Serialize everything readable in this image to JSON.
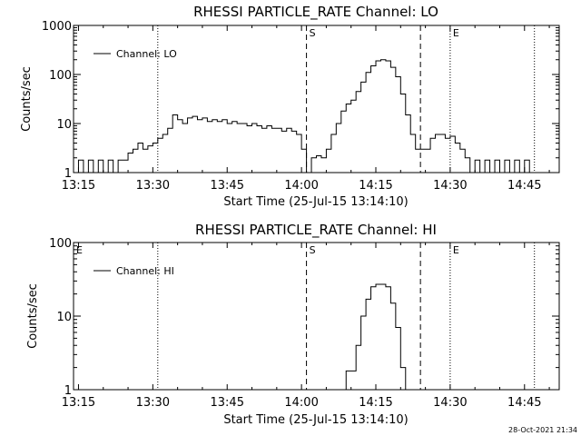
{
  "timestamp": "28-Oct-2021 21:34",
  "chart_data": [
    {
      "type": "line",
      "title": "RHESSI PARTICLE_RATE Channel: LO",
      "xlabel": "Start Time (25-Jul-15 13:14:10)",
      "ylabel": "Counts/sec",
      "yscale": "log",
      "xlim": [
        "13:14",
        "14:52"
      ],
      "ylim": [
        1,
        1000
      ],
      "x_ticks": [
        "13:15",
        "13:30",
        "13:45",
        "14:00",
        "14:15",
        "14:30",
        "14:45"
      ],
      "y_ticks": [
        "1",
        "10",
        "100",
        "1000"
      ],
      "legend": {
        "placement": "top-left",
        "entries": [
          "Channel: LO"
        ]
      },
      "vlines": [
        {
          "x": "13:31",
          "style": "dotted",
          "label": ""
        },
        {
          "x": "14:01",
          "style": "dashed",
          "label": "S"
        },
        {
          "x": "14:24",
          "style": "dashed",
          "label": ""
        },
        {
          "x": "14:30",
          "style": "dotted",
          "label": "E"
        },
        {
          "x": "14:47",
          "style": "dotted",
          "label": ""
        }
      ],
      "series": [
        {
          "name": "Channel: LO",
          "points": [
            [
              "13:14",
              1
            ],
            [
              "13:15",
              1.8
            ],
            [
              "13:16",
              1
            ],
            [
              "13:17",
              1.8
            ],
            [
              "13:18",
              1
            ],
            [
              "13:19",
              1.8
            ],
            [
              "13:20",
              1
            ],
            [
              "13:21",
              1.8
            ],
            [
              "13:22",
              1
            ],
            [
              "13:23",
              1.8
            ],
            [
              "13:24",
              1.8
            ],
            [
              "13:25",
              2.5
            ],
            [
              "13:26",
              3
            ],
            [
              "13:27",
              4
            ],
            [
              "13:28",
              3
            ],
            [
              "13:29",
              3.5
            ],
            [
              "13:30",
              4
            ],
            [
              "13:31",
              5
            ],
            [
              "13:32",
              6
            ],
            [
              "13:33",
              8
            ],
            [
              "13:34",
              15
            ],
            [
              "13:35",
              12
            ],
            [
              "13:36",
              10
            ],
            [
              "13:37",
              13
            ],
            [
              "13:38",
              14
            ],
            [
              "13:39",
              12
            ],
            [
              "13:40",
              13
            ],
            [
              "13:41",
              11
            ],
            [
              "13:42",
              12
            ],
            [
              "13:43",
              11
            ],
            [
              "13:44",
              12
            ],
            [
              "13:45",
              10
            ],
            [
              "13:46",
              11
            ],
            [
              "13:47",
              10
            ],
            [
              "13:48",
              10
            ],
            [
              "13:49",
              9
            ],
            [
              "13:50",
              10
            ],
            [
              "13:51",
              9
            ],
            [
              "13:52",
              8
            ],
            [
              "13:53",
              9
            ],
            [
              "13:54",
              8
            ],
            [
              "13:55",
              8
            ],
            [
              "13:56",
              7
            ],
            [
              "13:57",
              8
            ],
            [
              "13:58",
              7
            ],
            [
              "13:59",
              6
            ],
            [
              "14:00",
              3
            ],
            [
              "14:01",
              1
            ],
            [
              "14:02",
              2
            ],
            [
              "14:03",
              2.2
            ],
            [
              "14:04",
              2
            ],
            [
              "14:05",
              3
            ],
            [
              "14:06",
              6
            ],
            [
              "14:07",
              10
            ],
            [
              "14:08",
              18
            ],
            [
              "14:09",
              25
            ],
            [
              "14:10",
              30
            ],
            [
              "14:11",
              45
            ],
            [
              "14:12",
              70
            ],
            [
              "14:13",
              110
            ],
            [
              "14:14",
              150
            ],
            [
              "14:15",
              190
            ],
            [
              "14:16",
              200
            ],
            [
              "14:17",
              190
            ],
            [
              "14:18",
              140
            ],
            [
              "14:19",
              90
            ],
            [
              "14:20",
              40
            ],
            [
              "14:21",
              15
            ],
            [
              "14:22",
              6
            ],
            [
              "14:23",
              3
            ],
            [
              "14:24",
              3
            ],
            [
              "14:25",
              3
            ],
            [
              "14:26",
              5
            ],
            [
              "14:27",
              6
            ],
            [
              "14:28",
              6
            ],
            [
              "14:29",
              5
            ],
            [
              "14:30",
              5.5
            ],
            [
              "14:31",
              4
            ],
            [
              "14:32",
              3
            ],
            [
              "14:33",
              2
            ],
            [
              "14:34",
              1
            ],
            [
              "14:35",
              1.8
            ],
            [
              "14:36",
              1
            ],
            [
              "14:37",
              1.8
            ],
            [
              "14:38",
              1
            ],
            [
              "14:39",
              1.8
            ],
            [
              "14:40",
              1
            ],
            [
              "14:41",
              1.8
            ],
            [
              "14:42",
              1
            ],
            [
              "14:43",
              1.8
            ],
            [
              "14:44",
              1
            ],
            [
              "14:45",
              1.8
            ],
            [
              "14:46",
              1
            ],
            [
              "14:47",
              1
            ]
          ]
        }
      ]
    },
    {
      "type": "line",
      "title": "RHESSI PARTICLE_RATE Channel: HI",
      "xlabel": "Start Time (25-Jul-15 13:14:10)",
      "ylabel": "Counts/sec",
      "yscale": "log",
      "xlim": [
        "13:14",
        "14:52"
      ],
      "ylim": [
        1,
        100
      ],
      "x_ticks": [
        "13:15",
        "13:30",
        "13:45",
        "14:00",
        "14:15",
        "14:30",
        "14:45"
      ],
      "y_ticks": [
        "1",
        "10",
        "100"
      ],
      "legend": {
        "placement": "top-left",
        "entries": [
          "Channel: HI"
        ]
      },
      "vlines": [
        {
          "x": "13:14",
          "style": "none",
          "label": "E"
        },
        {
          "x": "13:31",
          "style": "dotted",
          "label": ""
        },
        {
          "x": "14:01",
          "style": "dashed",
          "label": "S"
        },
        {
          "x": "14:24",
          "style": "dashed",
          "label": ""
        },
        {
          "x": "14:30",
          "style": "dotted",
          "label": "E"
        },
        {
          "x": "14:47",
          "style": "dotted",
          "label": ""
        }
      ],
      "series": [
        {
          "name": "Channel: HI",
          "points": [
            [
              "14:08",
              1
            ],
            [
              "14:09",
              1.8
            ],
            [
              "14:10",
              1.8
            ],
            [
              "14:11",
              4
            ],
            [
              "14:12",
              10
            ],
            [
              "14:13",
              17
            ],
            [
              "14:14",
              25
            ],
            [
              "14:15",
              27
            ],
            [
              "14:16",
              27
            ],
            [
              "14:17",
              25
            ],
            [
              "14:18",
              15
            ],
            [
              "14:19",
              7
            ],
            [
              "14:20",
              2
            ],
            [
              "14:21",
              1
            ]
          ]
        }
      ]
    }
  ]
}
